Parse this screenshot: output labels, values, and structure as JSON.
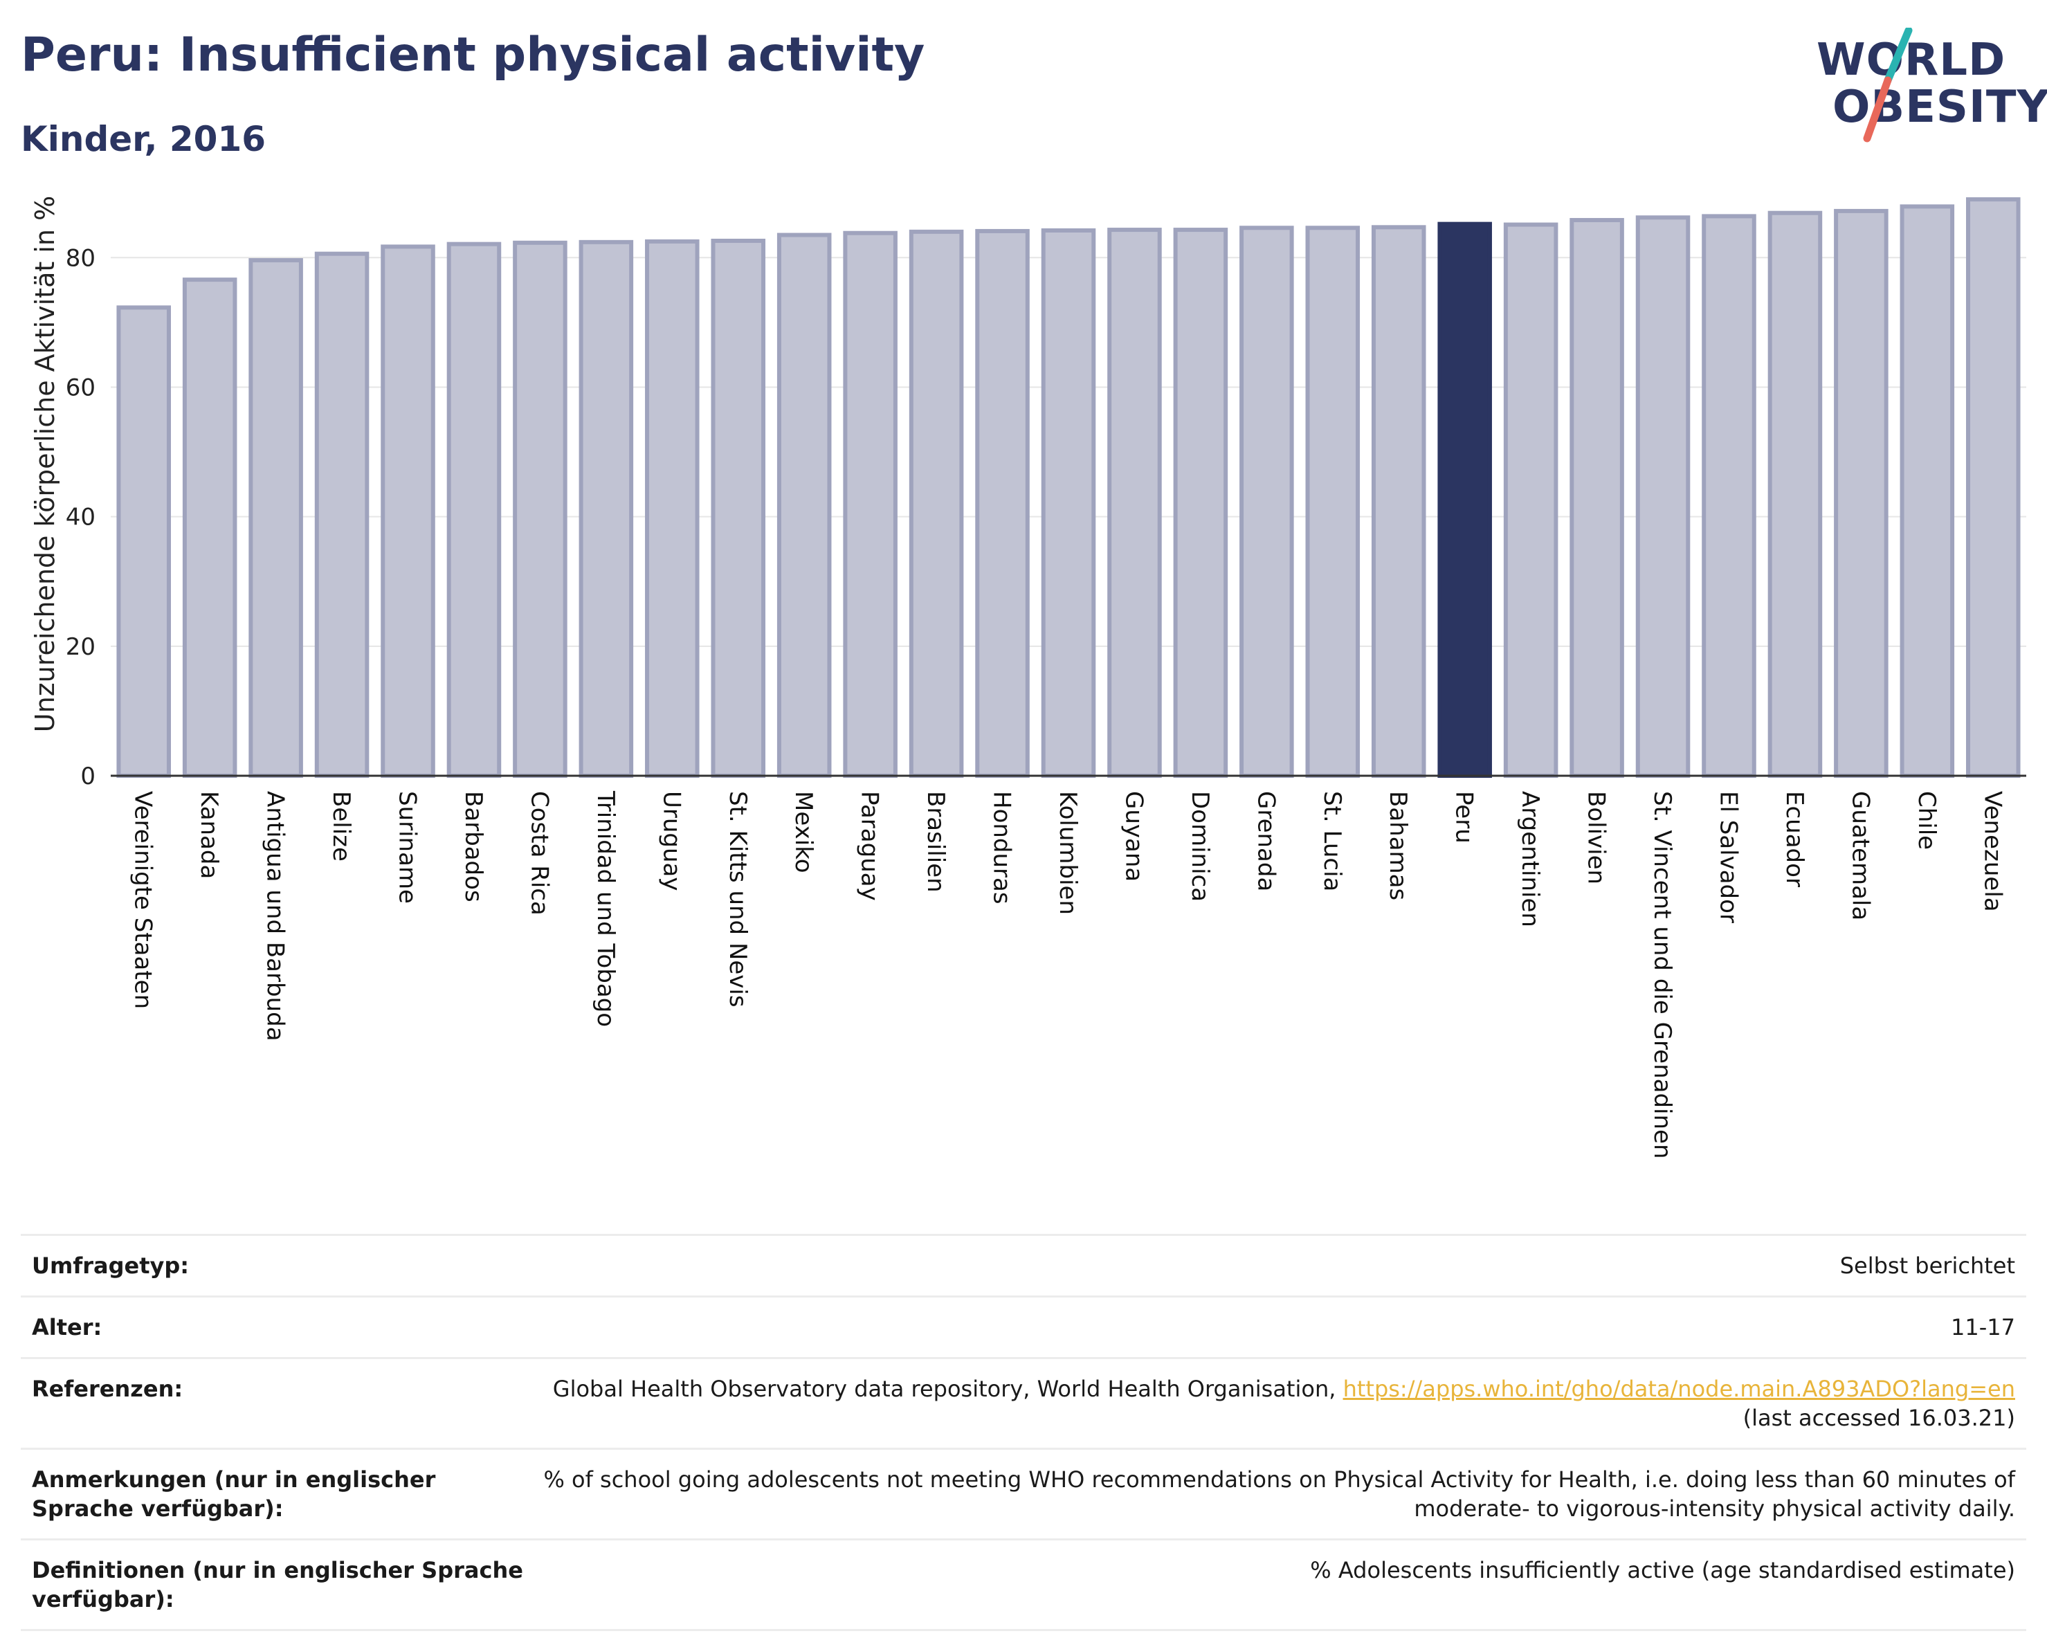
{
  "header": {
    "title": "Peru: Insufficient physical activity",
    "subtitle": "Kinder, 2016",
    "logo_line1": "WORLD",
    "logo_line2": "OBESITY"
  },
  "colors": {
    "bar": "#c1c3d3",
    "bar_border": "#9fa3bd",
    "highlight": "#2b3561",
    "grid": "#e6e6e6",
    "logo_teal": "#2ab3b1",
    "logo_coral": "#e8685a"
  },
  "chart_data": {
    "type": "bar",
    "ylabel": "Unzureichende körperliche Aktivität in %",
    "ylim": [
      0,
      92
    ],
    "yticks": [
      0,
      20,
      40,
      60,
      80
    ],
    "grid": true,
    "highlight": "Peru",
    "categories": [
      "Vereinigte Staaten",
      "Kanada",
      "Antigua und Barbuda",
      "Belize",
      "Suriname",
      "Barbados",
      "Costa Rica",
      "Trinidad und Tobago",
      "Uruguay",
      "St. Kitts und Nevis",
      "Mexiko",
      "Paraguay",
      "Brasilien",
      "Honduras",
      "Kolumbien",
      "Guyana",
      "Dominica",
      "Grenada",
      "St. Lucia",
      "Bahamas",
      "Peru",
      "Argentinien",
      "Bolivien",
      "St. Vincent und die Grenadinen",
      "El Salvador",
      "Ecuador",
      "Guatemala",
      "Chile",
      "Venezuela"
    ],
    "values": [
      72.3,
      76.6,
      79.6,
      80.6,
      81.7,
      82.1,
      82.3,
      82.4,
      82.5,
      82.6,
      83.5,
      83.8,
      84.0,
      84.1,
      84.2,
      84.3,
      84.3,
      84.6,
      84.6,
      84.7,
      85.2,
      85.1,
      85.8,
      86.2,
      86.4,
      86.9,
      87.2,
      87.9,
      89.0
    ]
  },
  "info": {
    "rows": [
      {
        "label": "Umfragetyp:",
        "value": "Selbst berichtet"
      },
      {
        "label": "Alter:",
        "value": "11-17"
      },
      {
        "label": "Referenzen:",
        "value": "Global Health Observatory data repository, World Health Organisation,",
        "link": "https://apps.who.int/gho/data/node.main.A893ADO?lang=en",
        "value2": "(last accessed 16.03.21)"
      },
      {
        "label": "Anmerkungen (nur in englischer Sprache verfügbar):",
        "value": "% of school going adolescents not meeting WHO recommendations on Physical Activity for Health, i.e. doing less than 60 minutes of moderate- to vigorous-intensity physical activity daily."
      },
      {
        "label": "Definitionen (nur in englischer Sprache verfügbar):",
        "value": "% Adolescents insufficiently active (age standardised estimate)"
      }
    ]
  }
}
